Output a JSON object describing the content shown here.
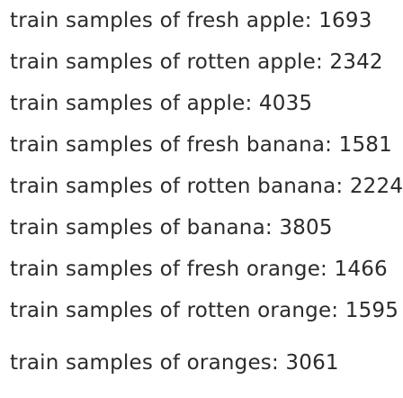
{
  "output": {
    "lines": [
      "train samples of fresh apple: 1693",
      "train samples of rotten apple: 2342",
      "train samples of apple: 4035",
      "train samples of fresh banana: 1581",
      "train samples of rotten banana: 2224",
      "train samples of banana: 3805",
      "train samples of fresh orange: 1466",
      "train samples of rotten orange: 1595",
      "train samples of oranges: 3061"
    ]
  }
}
